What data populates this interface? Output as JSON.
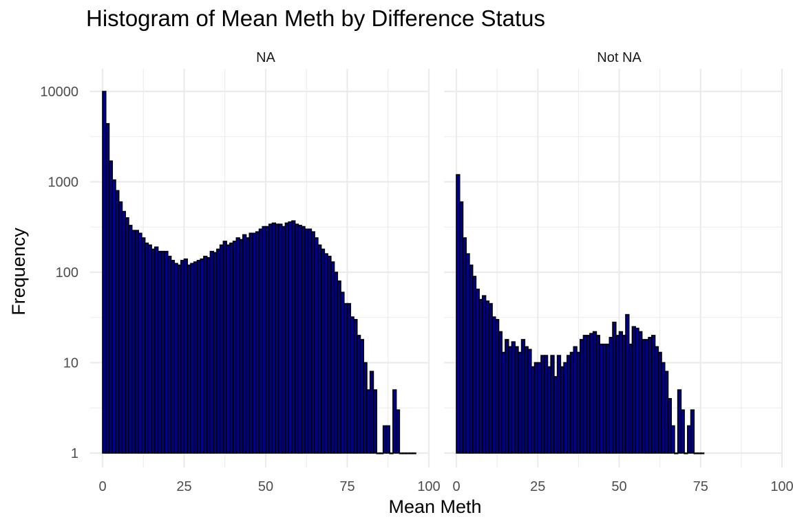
{
  "chart_data": {
    "type": "bar",
    "title": "Histogram of Mean Meth by Difference Status",
    "xlabel": "Mean Meth",
    "ylabel": "Frequency",
    "y_scale": "log10",
    "ylim": [
      1,
      10000
    ],
    "xlim": [
      0,
      100
    ],
    "bin_width": 1,
    "x_ticks": [
      0,
      25,
      50,
      75,
      100
    ],
    "y_ticks": [
      1,
      10,
      100,
      1000,
      10000
    ],
    "x_tick_labels": [
      "0",
      "25",
      "50",
      "75",
      "100"
    ],
    "y_tick_labels": [
      "1",
      "10",
      "100",
      "1000",
      "10000"
    ],
    "bar_fill": "#00008b",
    "bar_outline": "#000000",
    "grid": true,
    "legend": "none",
    "facets": [
      {
        "name": "NA",
        "bins_start": 0,
        "values": [
          10000,
          4400,
          1700,
          1050,
          800,
          600,
          470,
          400,
          330,
          290,
          290,
          270,
          240,
          210,
          200,
          180,
          190,
          170,
          170,
          170,
          150,
          135,
          125,
          120,
          135,
          140,
          120,
          125,
          130,
          135,
          140,
          150,
          145,
          170,
          165,
          180,
          200,
          220,
          200,
          210,
          220,
          240,
          230,
          260,
          240,
          270,
          270,
          280,
          300,
          320,
          320,
          340,
          350,
          340,
          340,
          320,
          350,
          360,
          370,
          340,
          330,
          320,
          300,
          300,
          280,
          240,
          200,
          180,
          160,
          150,
          130,
          100,
          80,
          60,
          45,
          45,
          32,
          30,
          20,
          18,
          10,
          5,
          8,
          5,
          1,
          1,
          2,
          2,
          1,
          5,
          3,
          1,
          1,
          1,
          1,
          1
        ]
      },
      {
        "name": "Not NA",
        "bins_start": 0,
        "values": [
          1200,
          600,
          240,
          160,
          120,
          90,
          65,
          50,
          55,
          48,
          45,
          32,
          30,
          22,
          13,
          18,
          15,
          17,
          15,
          13,
          18,
          15,
          14,
          9,
          10,
          10,
          12,
          12,
          9,
          12,
          7,
          12,
          9,
          10,
          12,
          13,
          15,
          13,
          18,
          20,
          20,
          21,
          22,
          20,
          16,
          16,
          16,
          19,
          28,
          20,
          22,
          20,
          34,
          16,
          25,
          24,
          22,
          18,
          18,
          19,
          20,
          15,
          13,
          10,
          8,
          4,
          2,
          1,
          5,
          3,
          1,
          2,
          3,
          1,
          1,
          1
        ]
      }
    ]
  }
}
